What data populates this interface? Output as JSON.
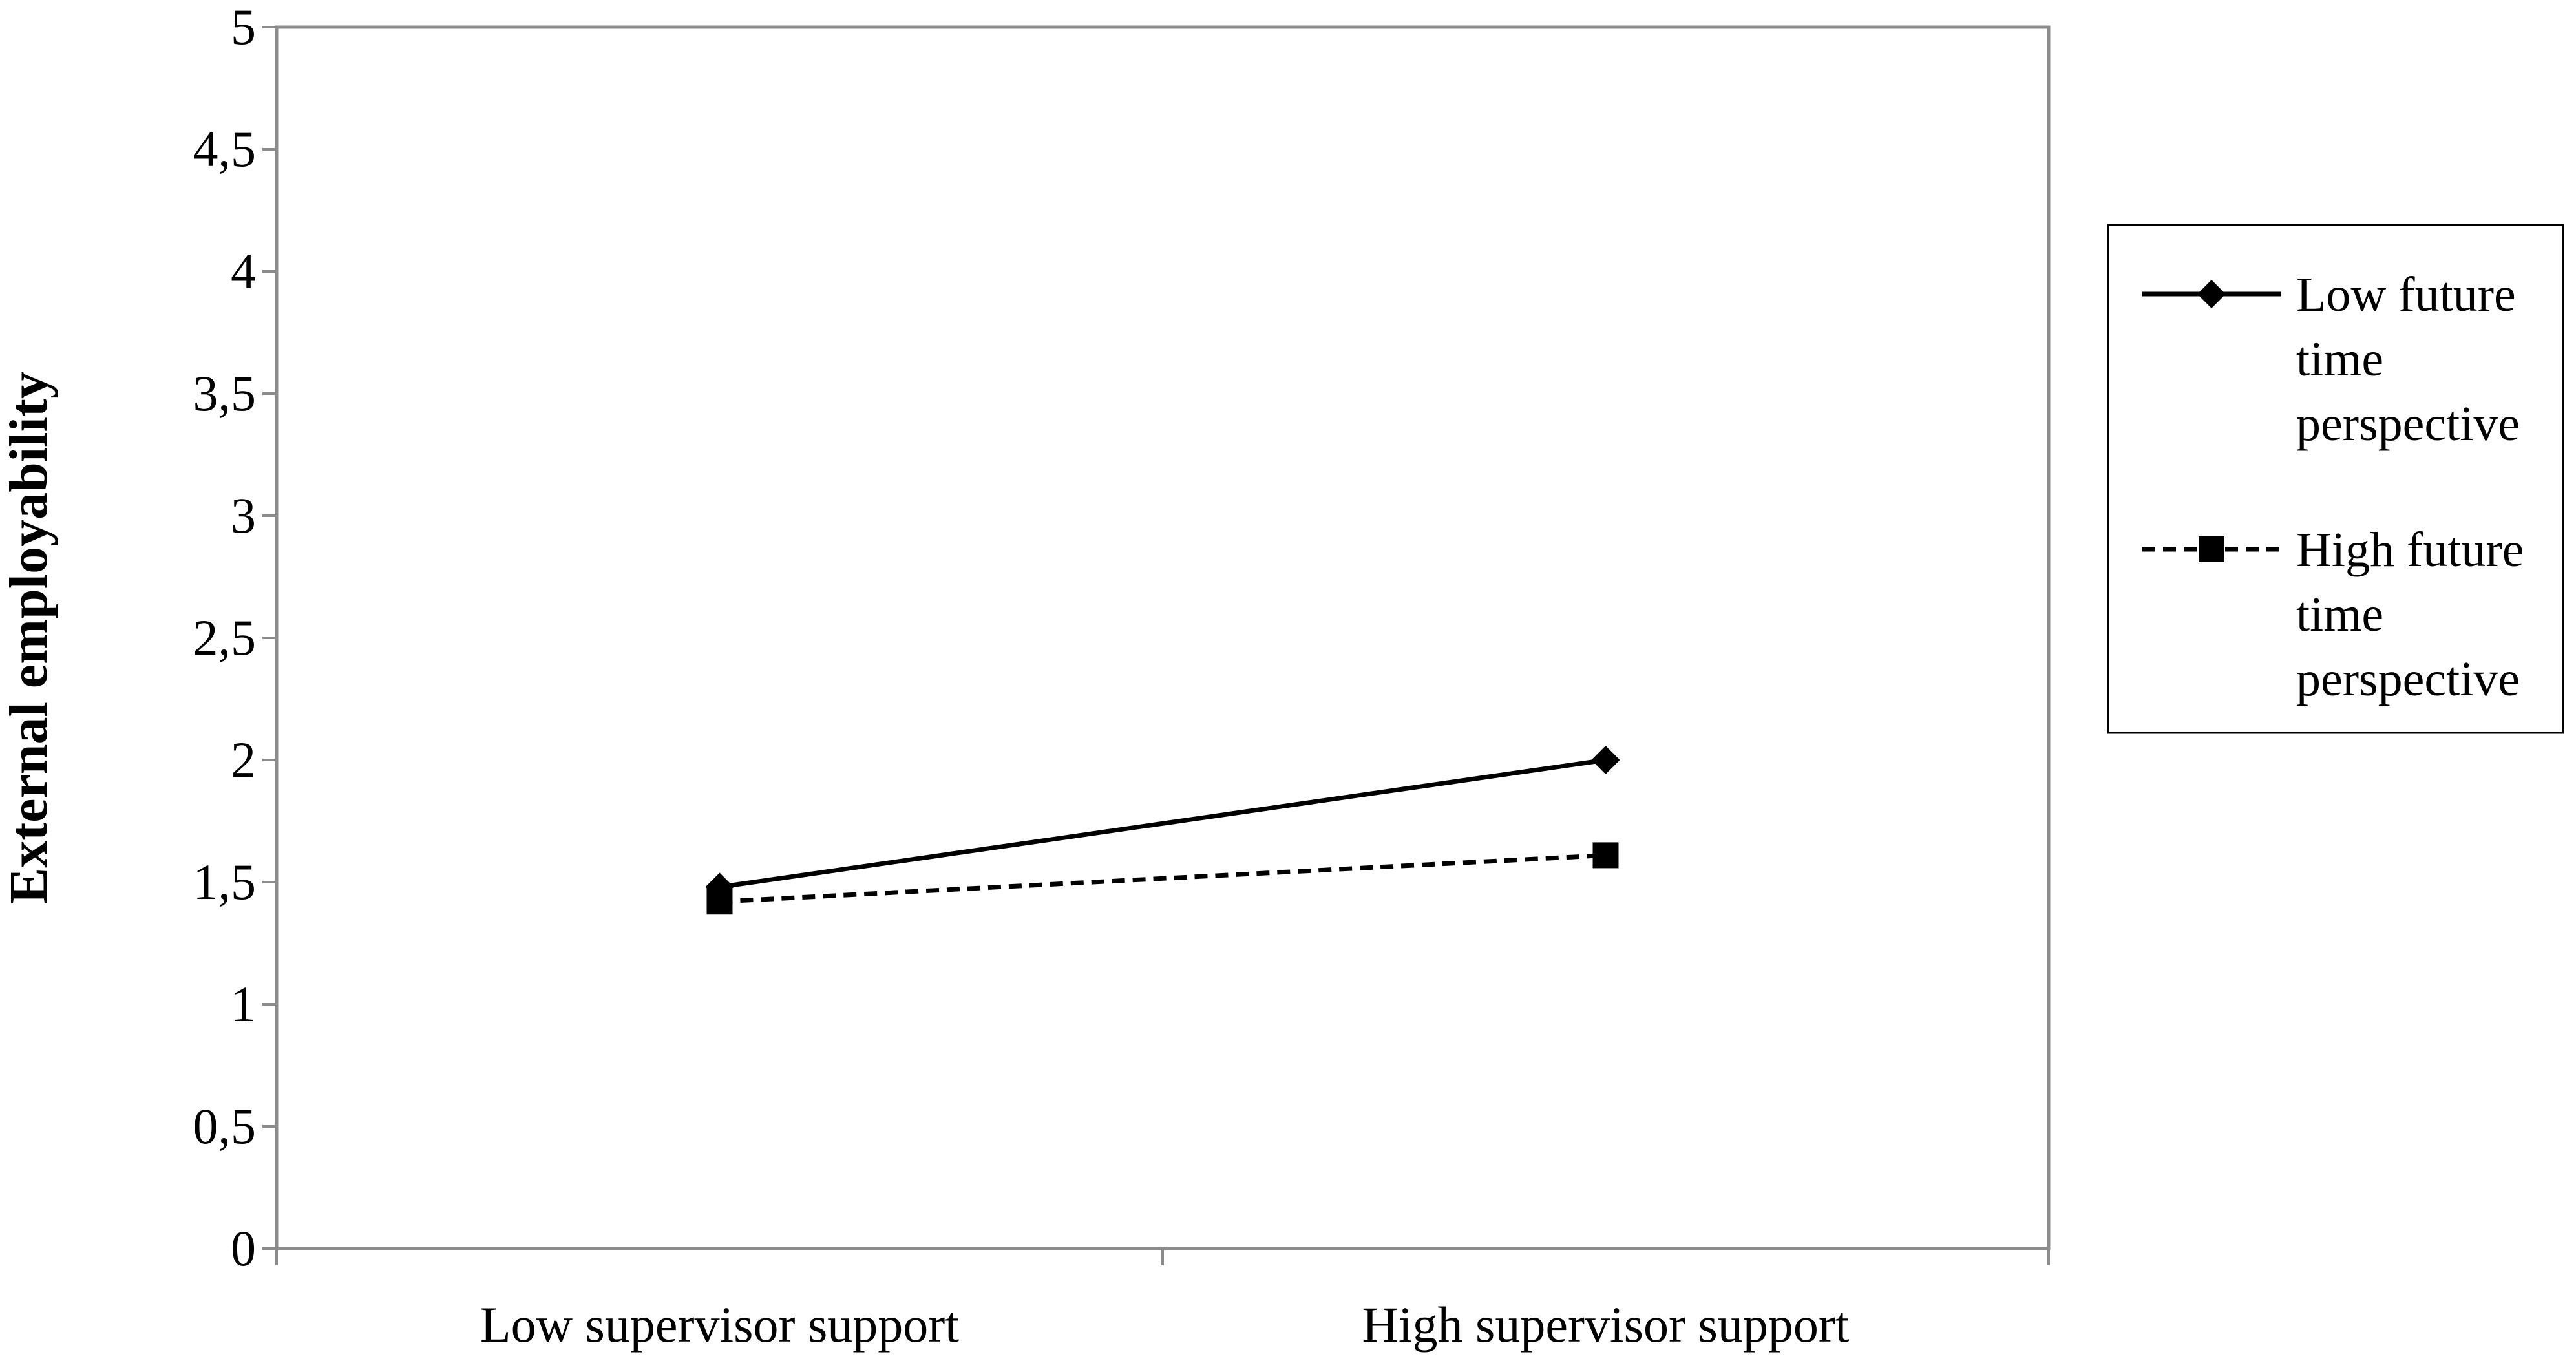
{
  "chart_data": {
    "type": "line",
    "categories": [
      "Low supervisor support",
      "High supervisor support"
    ],
    "ylabel": "External employability",
    "xlabel": "",
    "ylim": [
      0,
      5
    ],
    "yticks": [
      "0",
      "0,5",
      "1",
      "1,5",
      "2",
      "2,5",
      "3",
      "3,5",
      "4",
      "4,5",
      "5"
    ],
    "grid": false,
    "legend_position": "right",
    "series": [
      {
        "name_lines": [
          "Low future",
          "time",
          "perspective"
        ],
        "values": [
          1.48,
          2.0
        ],
        "marker": "diamond",
        "line_style": "solid",
        "color": "#000000"
      },
      {
        "name_lines": [
          "High future",
          "time",
          "perspective"
        ],
        "values": [
          1.42,
          1.61
        ],
        "marker": "square",
        "line_style": "dashed",
        "color": "#000000"
      }
    ]
  }
}
